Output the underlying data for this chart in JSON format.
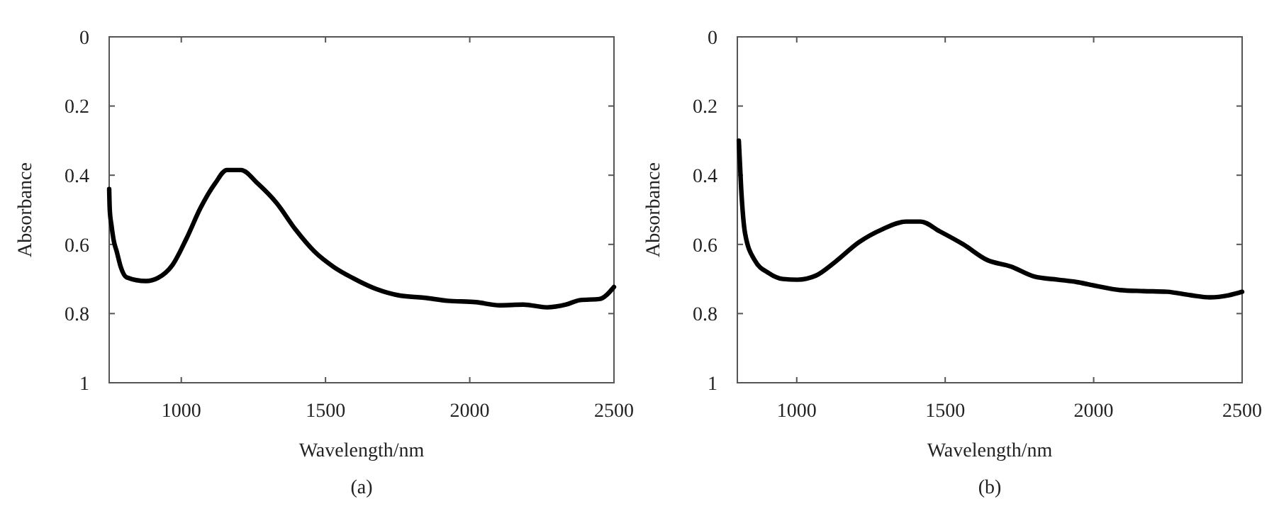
{
  "chart_data": [
    {
      "type": "line",
      "xlabel": "Wavelength/nm",
      "ylabel": "Absorbance",
      "annotations": [
        "(a)"
      ],
      "xlim": [
        750,
        2500
      ],
      "ylim": [
        1,
        0
      ],
      "xticks": [
        1000,
        1500,
        2000,
        2500
      ],
      "yticks": [
        0,
        0.2,
        0.4,
        0.6,
        0.8,
        1
      ],
      "grid": false,
      "marker": "none",
      "line_style": "solid",
      "series": [
        {
          "color": "#000000",
          "x": [
            750,
            752,
            758,
            766,
            776,
            790,
            810,
            878,
            919,
            969,
            1018,
            1067,
            1117,
            1158,
            1207,
            1265,
            1331,
            1396,
            1462,
            1528,
            1594,
            1676,
            1758,
            1840,
            1923,
            2021,
            2104,
            2186,
            2268,
            2334,
            2383,
            2449,
            2500
          ],
          "values": [
            0.44,
            0.5,
            0.545,
            0.59,
            0.62,
            0.665,
            0.695,
            0.706,
            0.697,
            0.66,
            0.583,
            0.494,
            0.424,
            0.385,
            0.385,
            0.424,
            0.481,
            0.557,
            0.621,
            0.665,
            0.697,
            0.729,
            0.748,
            0.754,
            0.763,
            0.767,
            0.776,
            0.774,
            0.782,
            0.774,
            0.761,
            0.758,
            0.723
          ]
        }
      ]
    },
    {
      "type": "line",
      "xlabel": "Wavelength/nm",
      "ylabel": "Absorbance",
      "annotations": [
        "(b)"
      ],
      "xlim": [
        800,
        2500
      ],
      "ylim": [
        1,
        0
      ],
      "xticks": [
        1000,
        1500,
        2000,
        2500
      ],
      "yticks": [
        0,
        0.2,
        0.4,
        0.6,
        0.8,
        1
      ],
      "grid": false,
      "marker": "none",
      "line_style": "solid",
      "series": [
        {
          "color": "#000000",
          "x": [
            805,
            813,
            826,
            858,
            906,
            954,
            1002,
            1065,
            1129,
            1209,
            1289,
            1369,
            1417,
            1481,
            1561,
            1641,
            1721,
            1800,
            1880,
            1944,
            2008,
            2088,
            2168,
            2247,
            2327,
            2391,
            2455,
            2500
          ],
          "values": [
            0.3,
            0.44,
            0.568,
            0.645,
            0.683,
            0.7,
            0.702,
            0.69,
            0.651,
            0.594,
            0.556,
            0.534,
            0.534,
            0.562,
            0.6,
            0.645,
            0.664,
            0.693,
            0.702,
            0.709,
            0.72,
            0.732,
            0.735,
            0.737,
            0.747,
            0.753,
            0.747,
            0.737
          ]
        }
      ]
    }
  ]
}
